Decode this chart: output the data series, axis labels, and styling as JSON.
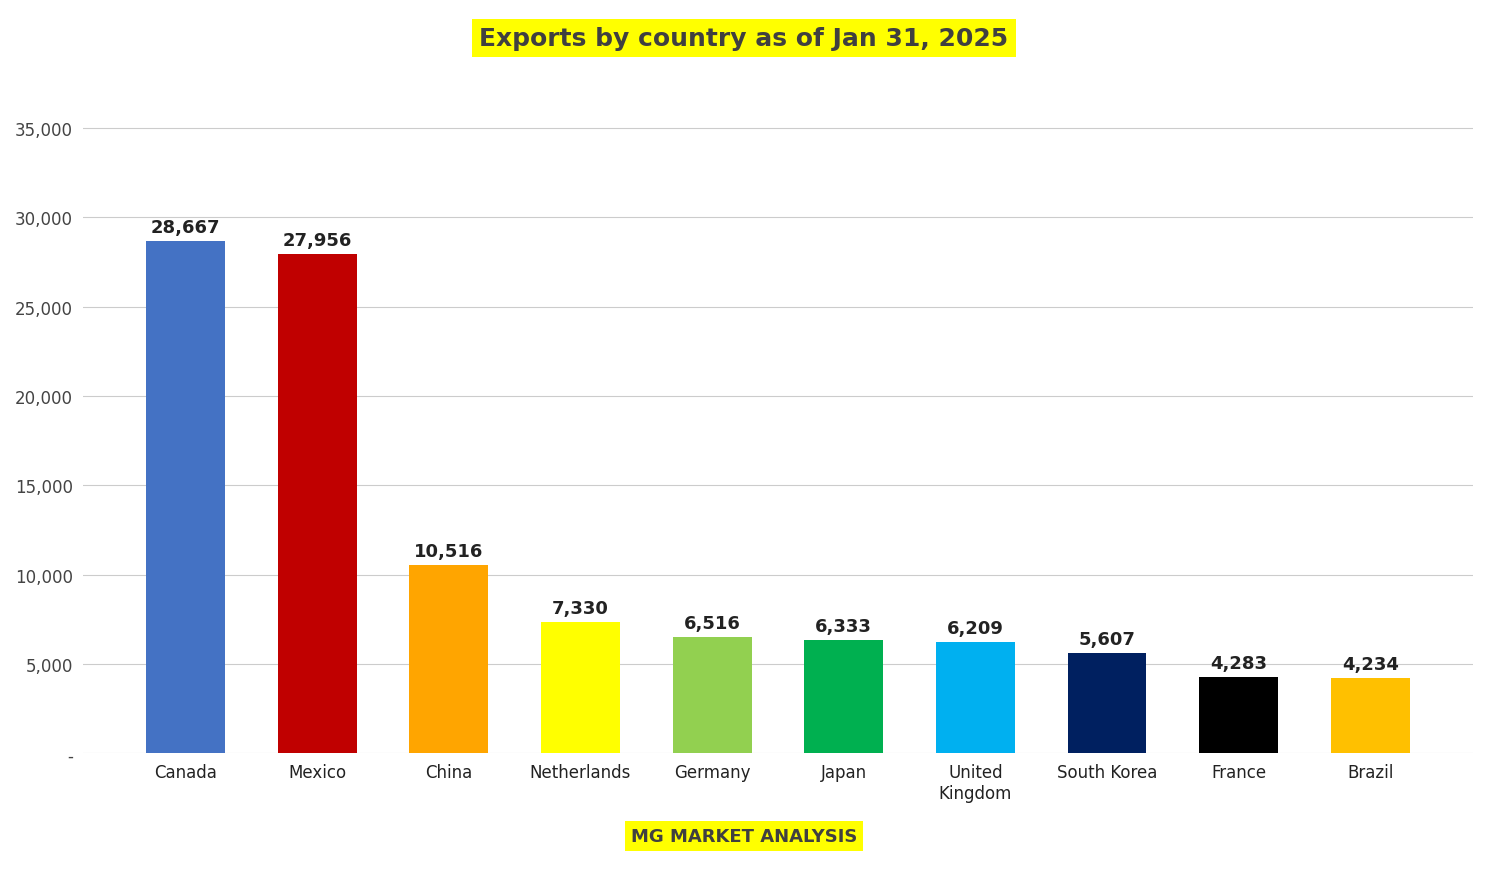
{
  "title": "Exports by country as of Jan 31, 2025",
  "subtitle": "MG MARKET ANALYSIS",
  "categories": [
    "Canada",
    "Mexico",
    "China",
    "Netherlands",
    "Germany",
    "Japan",
    "United\nKingdom",
    "South Korea",
    "France",
    "Brazil"
  ],
  "values": [
    28667,
    27956,
    10516,
    7330,
    6516,
    6333,
    6209,
    5607,
    4283,
    4234
  ],
  "bar_colors": [
    "#4472C4",
    "#C00000",
    "#FFA500",
    "#FFFF00",
    "#92D050",
    "#00B050",
    "#00B0F0",
    "#002060",
    "#000000",
    "#FFC000"
  ],
  "ylim": [
    0,
    37000
  ],
  "yticks": [
    0,
    5000,
    10000,
    15000,
    20000,
    25000,
    30000,
    35000
  ],
  "ytick_labels": [
    "-",
    "5,000",
    "10,000",
    "15,000",
    "20,000",
    "25,000",
    "30,000",
    "35,000"
  ],
  "background_color": "#FFFFFF",
  "title_fontsize": 18,
  "label_fontsize": 13,
  "tick_fontsize": 12,
  "subtitle_fontsize": 13,
  "title_bg_color": "#FFFF00",
  "subtitle_bg_color": "#FFFF00",
  "title_text_color": "#404040",
  "label_text_color": "#222222"
}
